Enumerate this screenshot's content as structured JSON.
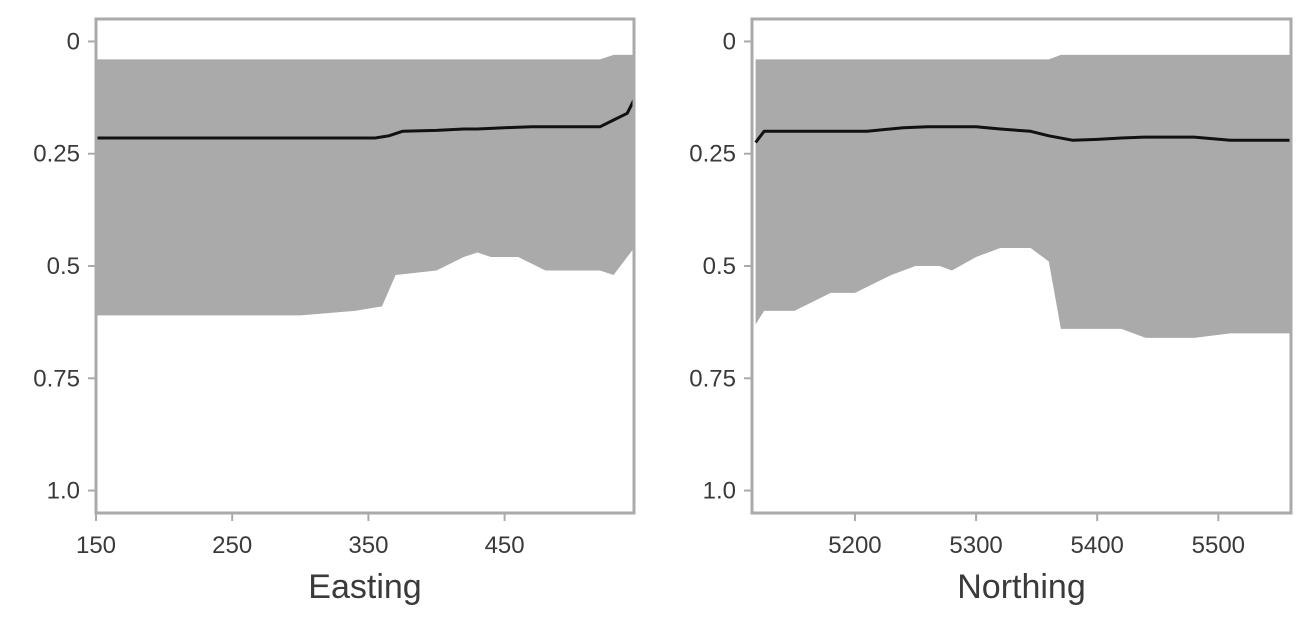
{
  "chart_data": [
    {
      "type": "area",
      "xlabel": "Easting",
      "ylabel": "",
      "title": "",
      "xlim": [
        150,
        545
      ],
      "ylim": [
        0,
        1.05
      ],
      "y_inverted": true,
      "grid": false,
      "xticks": [
        150,
        250,
        350,
        450
      ],
      "xtick_labels": [
        "150",
        "250",
        "350",
        "450"
      ],
      "yticks": [
        0,
        0.25,
        0.5,
        0.75,
        1.0
      ],
      "ytick_labels": [
        "0",
        "0.25",
        "0.5",
        "0.75",
        "1.0"
      ],
      "colors": {
        "band": "#aaaaaa",
        "line": "#111111",
        "frame": "#aaaaaa"
      },
      "band": {
        "x": [
          150,
          300,
          340,
          360,
          370,
          400,
          420,
          430,
          440,
          450,
          460,
          480,
          500,
          520,
          530,
          545
        ],
        "lower": [
          0.04,
          0.04,
          0.04,
          0.04,
          0.04,
          0.04,
          0.04,
          0.04,
          0.04,
          0.04,
          0.04,
          0.04,
          0.04,
          0.04,
          0.03,
          0.03
        ],
        "upper": [
          0.61,
          0.61,
          0.6,
          0.59,
          0.52,
          0.51,
          0.48,
          0.47,
          0.48,
          0.48,
          0.48,
          0.51,
          0.51,
          0.51,
          0.52,
          0.46
        ]
      },
      "line": {
        "x": [
          150,
          300,
          355,
          365,
          375,
          400,
          420,
          430,
          450,
          470,
          500,
          520,
          530,
          540,
          545
        ],
        "y": [
          0.215,
          0.215,
          0.215,
          0.21,
          0.2,
          0.198,
          0.195,
          0.195,
          0.192,
          0.19,
          0.19,
          0.19,
          0.175,
          0.16,
          0.13
        ]
      }
    },
    {
      "type": "area",
      "xlabel": "Northing",
      "ylabel": "",
      "title": "",
      "xlim": [
        5115,
        5560
      ],
      "ylim": [
        0,
        1.05
      ],
      "y_inverted": true,
      "grid": false,
      "xticks": [
        5200,
        5300,
        5400,
        5500
      ],
      "xtick_labels": [
        "5200",
        "5300",
        "5400",
        "5500"
      ],
      "yticks": [
        0,
        0.25,
        0.5,
        0.75,
        1.0
      ],
      "ytick_labels": [
        "0",
        "0.25",
        "0.5",
        "0.75",
        "1.0"
      ],
      "colors": {
        "band": "#aaaaaa",
        "line": "#111111",
        "frame": "#aaaaaa"
      },
      "band": {
        "x": [
          5118,
          5125,
          5150,
          5180,
          5200,
          5230,
          5250,
          5270,
          5280,
          5300,
          5320,
          5345,
          5360,
          5370,
          5380,
          5400,
          5420,
          5440,
          5460,
          5480,
          5510,
          5560
        ],
        "lower": [
          0.04,
          0.04,
          0.04,
          0.04,
          0.04,
          0.04,
          0.04,
          0.04,
          0.04,
          0.04,
          0.04,
          0.04,
          0.04,
          0.03,
          0.03,
          0.03,
          0.03,
          0.03,
          0.03,
          0.03,
          0.03,
          0.03
        ],
        "upper": [
          0.63,
          0.6,
          0.6,
          0.56,
          0.56,
          0.52,
          0.5,
          0.5,
          0.51,
          0.48,
          0.46,
          0.46,
          0.49,
          0.64,
          0.64,
          0.64,
          0.64,
          0.66,
          0.66,
          0.66,
          0.65,
          0.65
        ]
      },
      "line": {
        "x": [
          5118,
          5125,
          5150,
          5180,
          5210,
          5240,
          5260,
          5280,
          5300,
          5320,
          5345,
          5360,
          5380,
          5400,
          5420,
          5440,
          5460,
          5480,
          5510,
          5560
        ],
        "y": [
          0.225,
          0.2,
          0.2,
          0.2,
          0.2,
          0.192,
          0.19,
          0.19,
          0.19,
          0.195,
          0.2,
          0.21,
          0.22,
          0.218,
          0.215,
          0.213,
          0.213,
          0.213,
          0.22,
          0.22
        ]
      }
    }
  ]
}
